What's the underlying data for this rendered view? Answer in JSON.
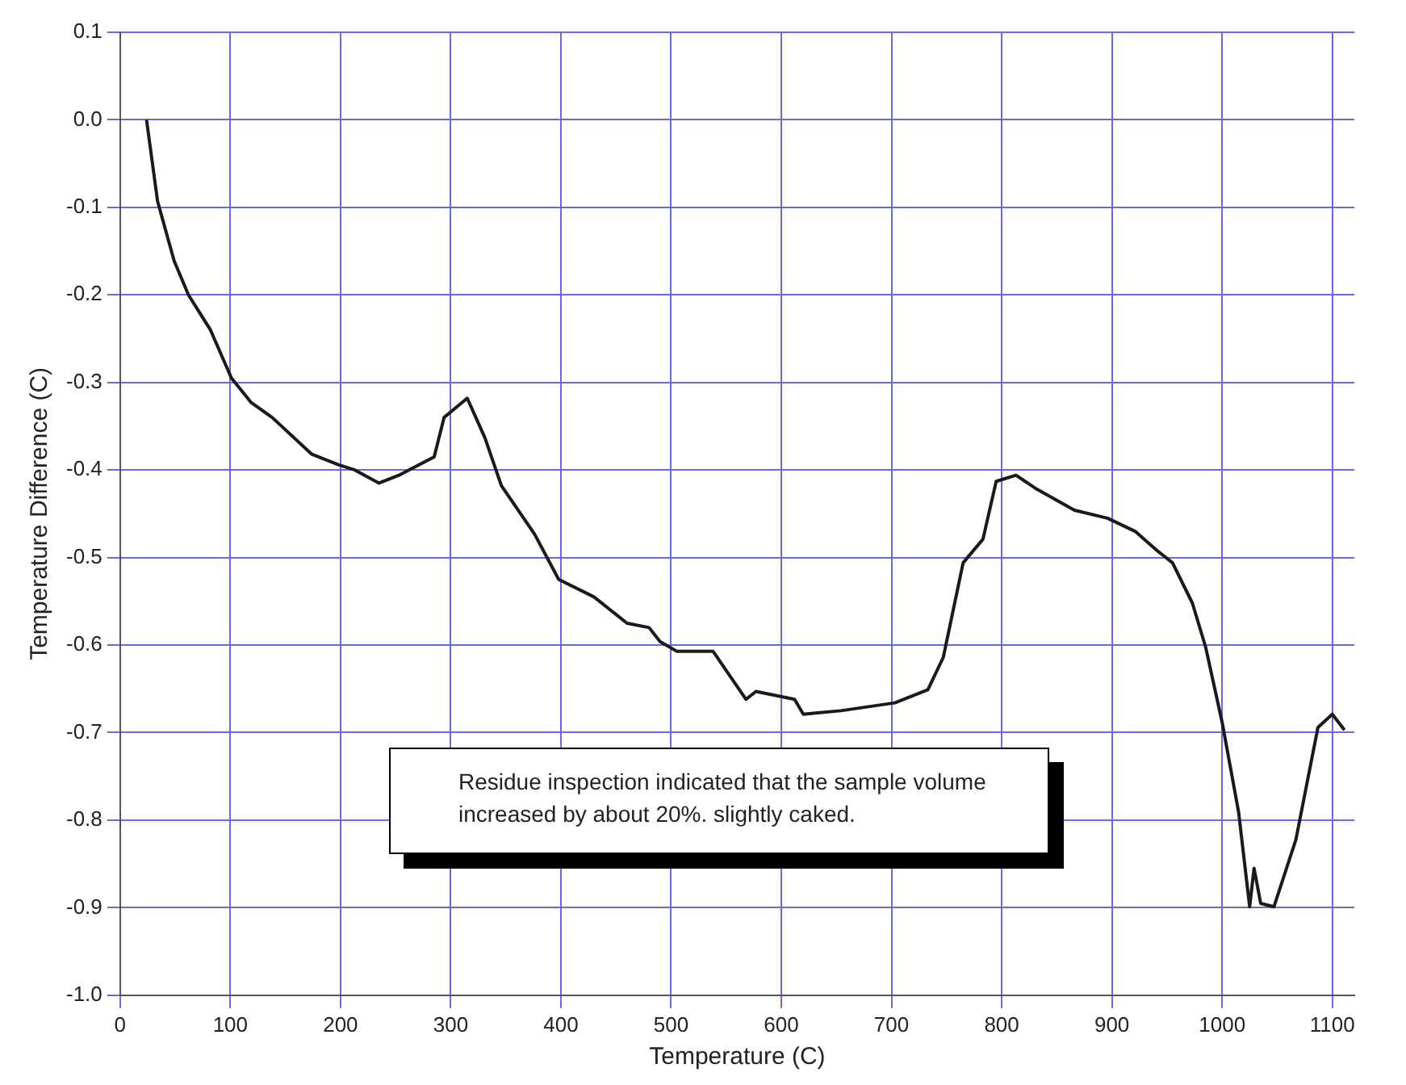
{
  "chart_data": {
    "type": "line",
    "xlabel": "Temperature (C)",
    "ylabel": "Temperature Difference (C)",
    "xlim": [
      0,
      1120
    ],
    "xticks": [
      0,
      100,
      200,
      300,
      400,
      500,
      600,
      700,
      800,
      900,
      1000,
      1100
    ],
    "ylim": [
      -1.0,
      0.1
    ],
    "yticks": [
      0.1,
      {
        "value": 0,
        "label": "0.0"
      },
      -0.1,
      -0.2,
      -0.3,
      -0.4,
      -0.5,
      -0.6,
      -0.7,
      -0.8,
      -0.9,
      {
        "value": -1,
        "label": "-1.0"
      }
    ],
    "grid": true,
    "marker": "none",
    "line_style": "solid",
    "annotations": [
      "Residue inspection indicated that the sample volume increased by about 20%. slightly caked."
    ],
    "series": [
      {
        "color": "#1a1a1a",
        "x": [
          24,
          34,
          49,
          62,
          82,
          101,
          119,
          138,
          174,
          198,
          213,
          235,
          253,
          285,
          294,
          315,
          331,
          346,
          376,
          398,
          430,
          460,
          480,
          490,
          505,
          538,
          568,
          577,
          612,
          620,
          654,
          703,
          733,
          747,
          765,
          783,
          795,
          813,
          832,
          866,
          896,
          921,
          941,
          955,
          973,
          985,
          1000,
          1015,
          1025,
          1029,
          1035,
          1047,
          1067,
          1087,
          1100,
          1111
        ],
        "values": [
          0.0,
          -0.093,
          -0.161,
          -0.2,
          -0.24,
          -0.295,
          -0.323,
          -0.34,
          -0.382,
          -0.394,
          -0.4,
          -0.415,
          -0.406,
          -0.385,
          -0.34,
          -0.318,
          -0.363,
          -0.418,
          -0.473,
          -0.525,
          -0.545,
          -0.575,
          -0.58,
          -0.596,
          -0.607,
          -0.607,
          -0.662,
          -0.653,
          -0.662,
          -0.679,
          -0.675,
          -0.666,
          -0.651,
          -0.614,
          -0.506,
          -0.479,
          -0.413,
          -0.406,
          -0.422,
          -0.446,
          -0.455,
          -0.47,
          -0.492,
          -0.506,
          -0.552,
          -0.602,
          -0.688,
          -0.791,
          -0.899,
          -0.855,
          -0.895,
          -0.899,
          -0.822,
          -0.694,
          -0.679,
          -0.697
        ]
      }
    ]
  }
}
